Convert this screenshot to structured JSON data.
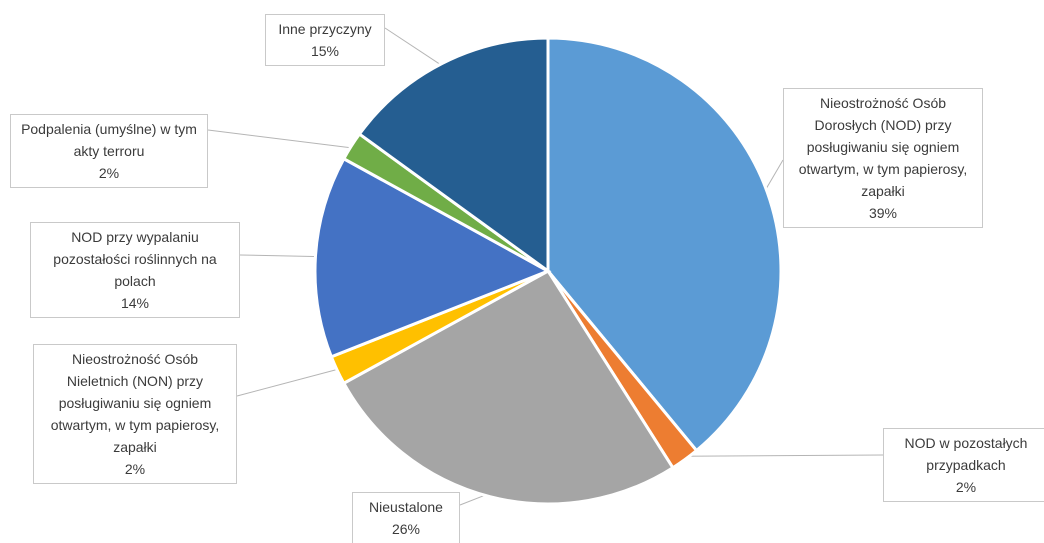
{
  "chart_data": {
    "type": "pie",
    "start_angle_deg": 0,
    "direction": "clockwise",
    "slices": [
      {
        "label": "Nieostrożność Osób Dorosłych (NOD) przy posługiwaniu się ogniem otwartym, w tym papierosy, zapałki",
        "value": 39,
        "percent_label": "39%",
        "color": "#5b9bd5"
      },
      {
        "label": "NOD w pozostałych przypadkach",
        "value": 2,
        "percent_label": "2%",
        "color": "#ed7d31"
      },
      {
        "label": "Nieustalone",
        "value": 26,
        "percent_label": "26%",
        "color": "#a5a5a5"
      },
      {
        "label": "Nieostrożność Osób Nieletnich (NON) przy posługiwaniu się ogniem otwartym, w tym papierosy, zapałki",
        "value": 2,
        "percent_label": "2%",
        "color": "#ffc000"
      },
      {
        "label": "NOD przy wypalaniu pozostałości roślinnych na polach",
        "value": 14,
        "percent_label": "14%",
        "color": "#4472c4"
      },
      {
        "label": "Podpalenia (umyślne) w tym akty terroru",
        "value": 2,
        "percent_label": "2%",
        "color": "#70ad47"
      },
      {
        "label": "Inne przyczyny",
        "value": 15,
        "percent_label": "15%",
        "color": "#255e91"
      }
    ]
  }
}
